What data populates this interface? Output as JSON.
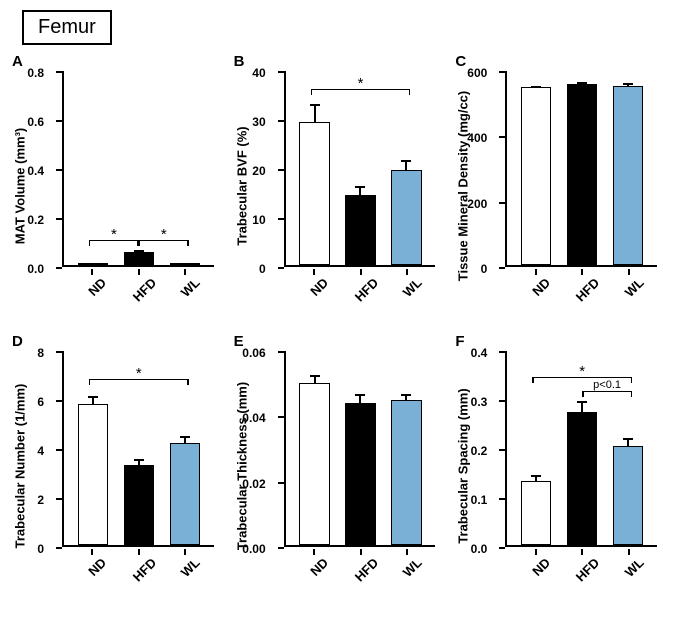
{
  "title": "Femur",
  "group_labels": [
    "ND",
    "HFD",
    "WL"
  ],
  "group_colors": [
    "#ffffff",
    "#000000",
    "#7ab0d6"
  ],
  "panels": [
    {
      "letter": "A",
      "ylabel": "MAT Volume (mm³)",
      "ymin": 0,
      "ymax": 0.8,
      "yticks": [
        0.0,
        0.2,
        0.4,
        0.6,
        0.8
      ],
      "ytick_labels": [
        "0.0",
        "0.2",
        "0.4",
        "0.6",
        "0.8"
      ],
      "values": [
        0.002,
        0.055,
        0.007
      ],
      "errors": [
        0.002,
        0.015,
        0.005
      ],
      "sig": [
        {
          "from": 0,
          "to": 1,
          "y": 0.1,
          "label": "*"
        },
        {
          "from": 1,
          "to": 2,
          "y": 0.1,
          "label": "*"
        }
      ]
    },
    {
      "letter": "B",
      "ylabel": "Trabecular BVF (%)",
      "ymin": 0,
      "ymax": 40,
      "yticks": [
        0,
        10,
        20,
        30,
        40
      ],
      "ytick_labels": [
        "0",
        "10",
        "20",
        "30",
        "40"
      ],
      "values": [
        29.5,
        14.5,
        19.5
      ],
      "errors": [
        4.0,
        2.0,
        2.5
      ],
      "sig": [
        {
          "from": 0,
          "to": 2,
          "y": 36,
          "label": "*"
        }
      ]
    },
    {
      "letter": "C",
      "ylabel": "Tissue Mineral Density (mg/cc)",
      "ymin": 0,
      "ymax": 600,
      "yticks": [
        0,
        200,
        400,
        600
      ],
      "ytick_labels": [
        "0",
        "200",
        "400",
        "600"
      ],
      "values": [
        550,
        560,
        555
      ],
      "errors": [
        8,
        10,
        12
      ],
      "sig": []
    },
    {
      "letter": "D",
      "ylabel": "Trabecular Number (1/mm)",
      "ymin": 0,
      "ymax": 8,
      "yticks": [
        0,
        2,
        4,
        6,
        8
      ],
      "ytick_labels": [
        "0",
        "2",
        "4",
        "6",
        "8"
      ],
      "values": [
        5.8,
        3.3,
        4.2
      ],
      "errors": [
        0.4,
        0.3,
        0.35
      ],
      "sig": [
        {
          "from": 0,
          "to": 2,
          "y": 6.8,
          "label": "*"
        }
      ]
    },
    {
      "letter": "E",
      "ylabel": "Trabecular Thickness (mm)",
      "ymin": 0,
      "ymax": 0.06,
      "yticks": [
        0.0,
        0.02,
        0.04,
        0.06
      ],
      "ytick_labels": [
        "0.00",
        "0.02",
        "0.04",
        "0.06"
      ],
      "values": [
        0.05,
        0.044,
        0.045
      ],
      "errors": [
        0.003,
        0.003,
        0.002
      ],
      "sig": []
    },
    {
      "letter": "F",
      "ylabel": "Trabecular Spacing (mm)",
      "ymin": 0,
      "ymax": 0.4,
      "yticks": [
        0.0,
        0.1,
        0.2,
        0.3,
        0.4
      ],
      "ytick_labels": [
        "0.0",
        "0.1",
        "0.2",
        "0.3",
        "0.4"
      ],
      "values": [
        0.132,
        0.275,
        0.205
      ],
      "errors": [
        0.015,
        0.025,
        0.018
      ],
      "sig": [
        {
          "from": 0,
          "to": 2,
          "y": 0.345,
          "label": "*"
        },
        {
          "from": 1,
          "to": 2,
          "y": 0.315,
          "label": "p<0.1",
          "small": true
        }
      ]
    }
  ]
}
